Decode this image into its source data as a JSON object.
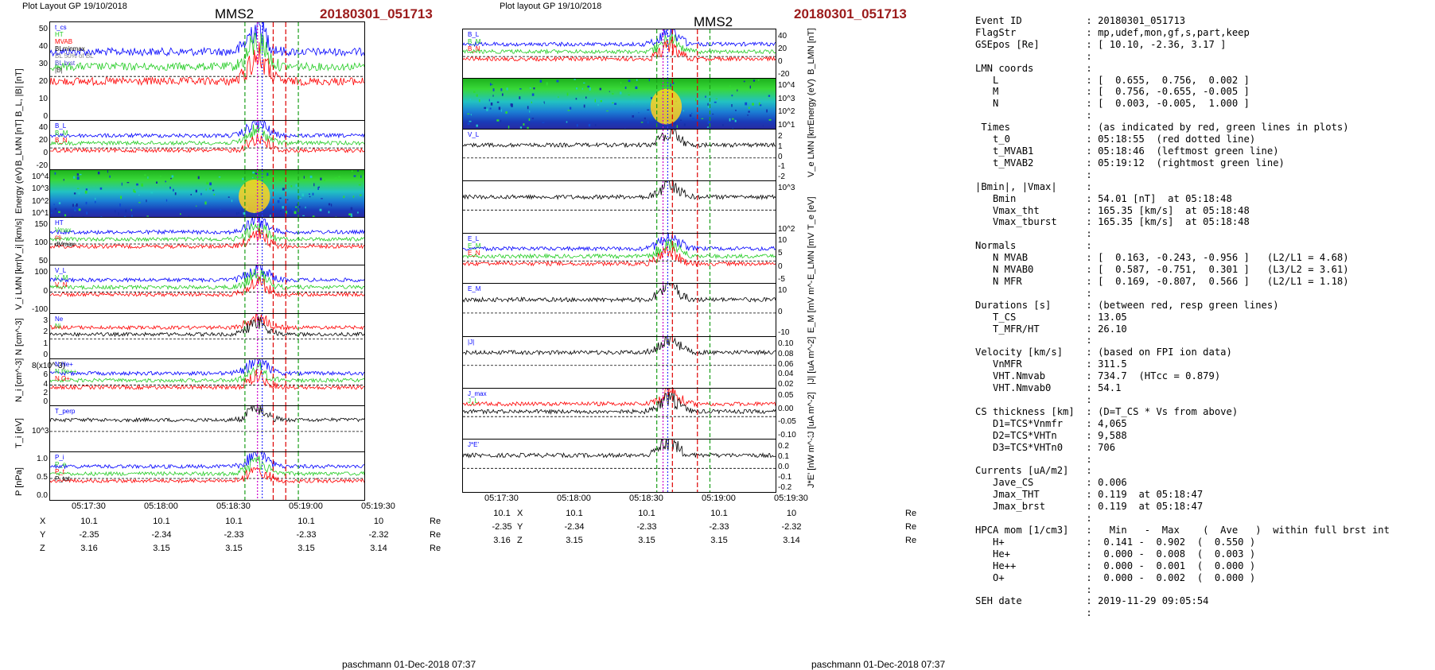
{
  "left_plot": {
    "header_small": "Plot Layout GP 19/10/2018",
    "title": "MMS2",
    "event": "20180301_051713",
    "footer": "paschmann 01-Dec-2018 07:37",
    "panels": [
      {
        "ylabel": "B_L, |B| [nT]",
        "ticks": [
          "50",
          "40",
          "30",
          "20",
          "10",
          "0"
        ],
        "legend": [
          "t_cs",
          "HT",
          "MVAB",
          "BLminmax",
          "BL 50% of BL",
          "BL brst",
          "|B|"
        ]
      },
      {
        "ylabel": "B_LMN [nT]",
        "ticks": [
          "40",
          "20",
          "0",
          "-20"
        ],
        "legend": [
          "B_L",
          "B_M",
          "B_N"
        ]
      },
      {
        "ylabel": "Energy (eV)",
        "ticks": [
          "10^4",
          "10^3",
          "10^2",
          "10^1"
        ]
      },
      {
        "ylabel": "|V_i| [km/s]",
        "ticks": [
          "150",
          "100",
          "50"
        ],
        "legend": [
          "HT",
          "Vmax",
          "cs",
          "dVmax"
        ]
      },
      {
        "ylabel": "V_i LMN [km/s]",
        "ticks": [
          "100",
          "0",
          "-100"
        ],
        "legend": [
          "V_L",
          "V_M",
          "V_N"
        ]
      },
      {
        "ylabel": "N [cm^-3]",
        "ticks": [
          "3",
          "2",
          "1",
          "0"
        ],
        "legend": [
          "Ne",
          "Ni"
        ]
      },
      {
        "ylabel": "N_i [cm^-3]",
        "ticks": [
          "8(x10^-3)",
          "6",
          "4",
          "2",
          "0"
        ],
        "legend": [
          "N He+",
          "N He++",
          "N O+"
        ]
      },
      {
        "ylabel": "T_i [eV]",
        "ticks": [
          "10^3"
        ],
        "legend": [
          "T_perp"
        ]
      },
      {
        "ylabel": "P [nPa]",
        "ticks": [
          "1.0",
          "0.5",
          "0.0"
        ],
        "legend": [
          "P_i",
          "P_e",
          "P_t",
          "P_tot"
        ]
      }
    ],
    "time_ticks": [
      "05:17:30",
      "05:18:00",
      "05:18:30",
      "05:19:00",
      "05:19:30"
    ],
    "coords": {
      "X": [
        "10.1",
        "10.1",
        "10.1",
        "10.1",
        "10"
      ],
      "Y": [
        "-2.35",
        "-2.34",
        "-2.33",
        "-2.33",
        "-2.32"
      ],
      "Z": [
        "3.16",
        "3.15",
        "3.15",
        "3.15",
        "3.14"
      ],
      "unit": "Re"
    }
  },
  "right_plot": {
    "header_small": "Plot layout GP 19/10/2018",
    "title": "MMS2",
    "event": "20180301_051713",
    "footer": "paschmann 01-Dec-2018 07:37",
    "panels": [
      {
        "ylabel": "B_LMN [nT]",
        "ticks": [
          "40",
          "20",
          "0",
          "-20"
        ],
        "legend": [
          "B_L",
          "B_M",
          "B_N"
        ]
      },
      {
        "ylabel": "Energy (eV)",
        "ticks": [
          "10^4",
          "10^3",
          "10^2",
          "10^1"
        ]
      },
      {
        "ylabel": "V_e LMN [km/s](x10^3)",
        "ticks": [
          "2",
          "1",
          "0",
          "-1",
          "-2"
        ],
        "legend": [
          "V_L"
        ]
      },
      {
        "ylabel": "T_e [eV]",
        "ticks": [
          "10^3",
          "10^2"
        ]
      },
      {
        "ylabel": "E_LMN [mV m^-1]",
        "ticks": [
          "10",
          "5",
          "0",
          "-5"
        ],
        "legend": [
          "E_L",
          "E_M",
          "E_N"
        ]
      },
      {
        "ylabel": "E_M [mV m^-1]",
        "ticks": [
          "10",
          "0",
          "-10"
        ],
        "legend": [
          "E_M"
        ]
      },
      {
        "ylabel": "|J| [uA m^-2]",
        "ticks": [
          "0.10",
          "0.08",
          "0.06",
          "0.04",
          "0.02"
        ],
        "legend": [
          "|J|"
        ]
      },
      {
        "ylabel": "J [uA m^-2]",
        "ticks": [
          "0.05",
          "0.00",
          "-0.05",
          "-0.10"
        ],
        "legend": [
          "J_max",
          "J_L"
        ]
      },
      {
        "ylabel": "J*E' [nW m^-3]",
        "ticks": [
          "0.2",
          "0.1",
          "0.0",
          "-0.1",
          "-0.2"
        ],
        "legend": [
          "J*E'"
        ]
      }
    ],
    "time_ticks": [
      "05:17:30",
      "05:18:00",
      "05:18:30",
      "05:19:00",
      "05:19:30"
    ],
    "coords": {
      "X": [
        "10.1",
        "10.1",
        "10.1",
        "10.1",
        "10"
      ],
      "Y": [
        "-2.35",
        "-2.34",
        "-2.33",
        "-2.33",
        "-2.32"
      ],
      "Z": [
        "3.16",
        "3.15",
        "3.15",
        "3.15",
        "3.14"
      ],
      "unit": "Re"
    }
  },
  "info_text": [
    "Event ID           : 20180301_051713",
    "FlagStr            : mp,udef,mon,gf,s,part,keep",
    "GSEpos [Re]        : [ 10.10, -2.36, 3.17 ]",
    "                   :",
    "LMN coords         :",
    "   L               : [  0.655,  0.756,  0.002 ]",
    "   M               : [  0.756, -0.655, -0.005 ]",
    "   N               : [  0.003, -0.005,  1.000 ]",
    "                   :",
    " Times             : (as indicated by red, green lines in plots)",
    "   t_0             : 05:18:55  (red dotted line)",
    "   t_MVAB1         : 05:18:46  (leftmost green line)",
    "   t_MVAB2         : 05:19:12  (rightmost green line)",
    "                   :",
    "|Bmin|, |Vmax|     :",
    "   Bmin            : 54.01 [nT]  at 05:18:48",
    "   Vmax_tht        : 165.35 [km/s]  at 05:18:48",
    "   Vmax_tburst     : 165.35 [km/s]  at 05:18:48",
    "                   :",
    "Normals            :",
    "   N MVAB          : [  0.163, -0.243, -0.956 ]   (L2/L1 = 4.68)",
    "   N MVAB0         : [  0.587, -0.751,  0.301 ]   (L3/L2 = 3.61)",
    "   N MFR           : [  0.169, -0.807,  0.566 ]   (L2/L1 = 1.18)",
    "                   :",
    "Durations [s]      : (between red, resp green lines)",
    "   T_CS            : 13.05",
    "   T_MFR/HT        : 26.10",
    "                   :",
    "Velocity [km/s]    : (based on FPI ion data)",
    "   VnMFR           : 311.5",
    "   VHT.Nmvab       : 734.7  (HTcc = 0.879)",
    "   VHT.Nmvab0      : 54.1",
    "                   :",
    "CS thickness [km]  : (D=T_CS * Vs from above)",
    "   D1=TCS*Vnmfr    : 4,065",
    "   D2=TCS*VHTn     : 9,588",
    "   D3=TCS*VHTn0    : 706",
    "                   :",
    "Currents [uA/m2]   :",
    "   Jave_CS         : 0.006",
    "   Jmax_THT        : 0.119  at 05:18:47",
    "   Jmax_brst       : 0.119  at 05:18:47",
    "                   :",
    "HPCA mom [1/cm3]   :   Min   -  Max    (  Ave   )  within full brst int",
    "   H+              :  0.141 -  0.902  (  0.550 )",
    "   He+             :  0.000 -  0.008  (  0.003 )",
    "   He++            :  0.000 -  0.001  (  0.000 )",
    "   O+              :  0.000 -  0.002  (  0.000 )",
    "                   :",
    "SEH date           : 2019-11-29 09:05:54",
    "                   :"
  ],
  "colors": {
    "event": "#9b1b1b",
    "bl": "#0000ff",
    "bm": "#22cc22",
    "bn": "#ff0000",
    "black": "#000000"
  },
  "chart_data": [
    {
      "type": "line",
      "title": "MMS2",
      "subtitle": "20180301_051713",
      "xlabel": "",
      "x_ticks": [
        "05:17:30",
        "05:18:00",
        "05:18:30",
        "05:19:00",
        "05:19:30"
      ]
    },
    {
      "type": "line",
      "title": "MMS2",
      "subtitle": "20180301_051713",
      "xlabel": "",
      "x_ticks": [
        "05:17:30",
        "05:18:00",
        "05:18:30",
        "05:19:00",
        "05:19:30"
      ]
    }
  ]
}
